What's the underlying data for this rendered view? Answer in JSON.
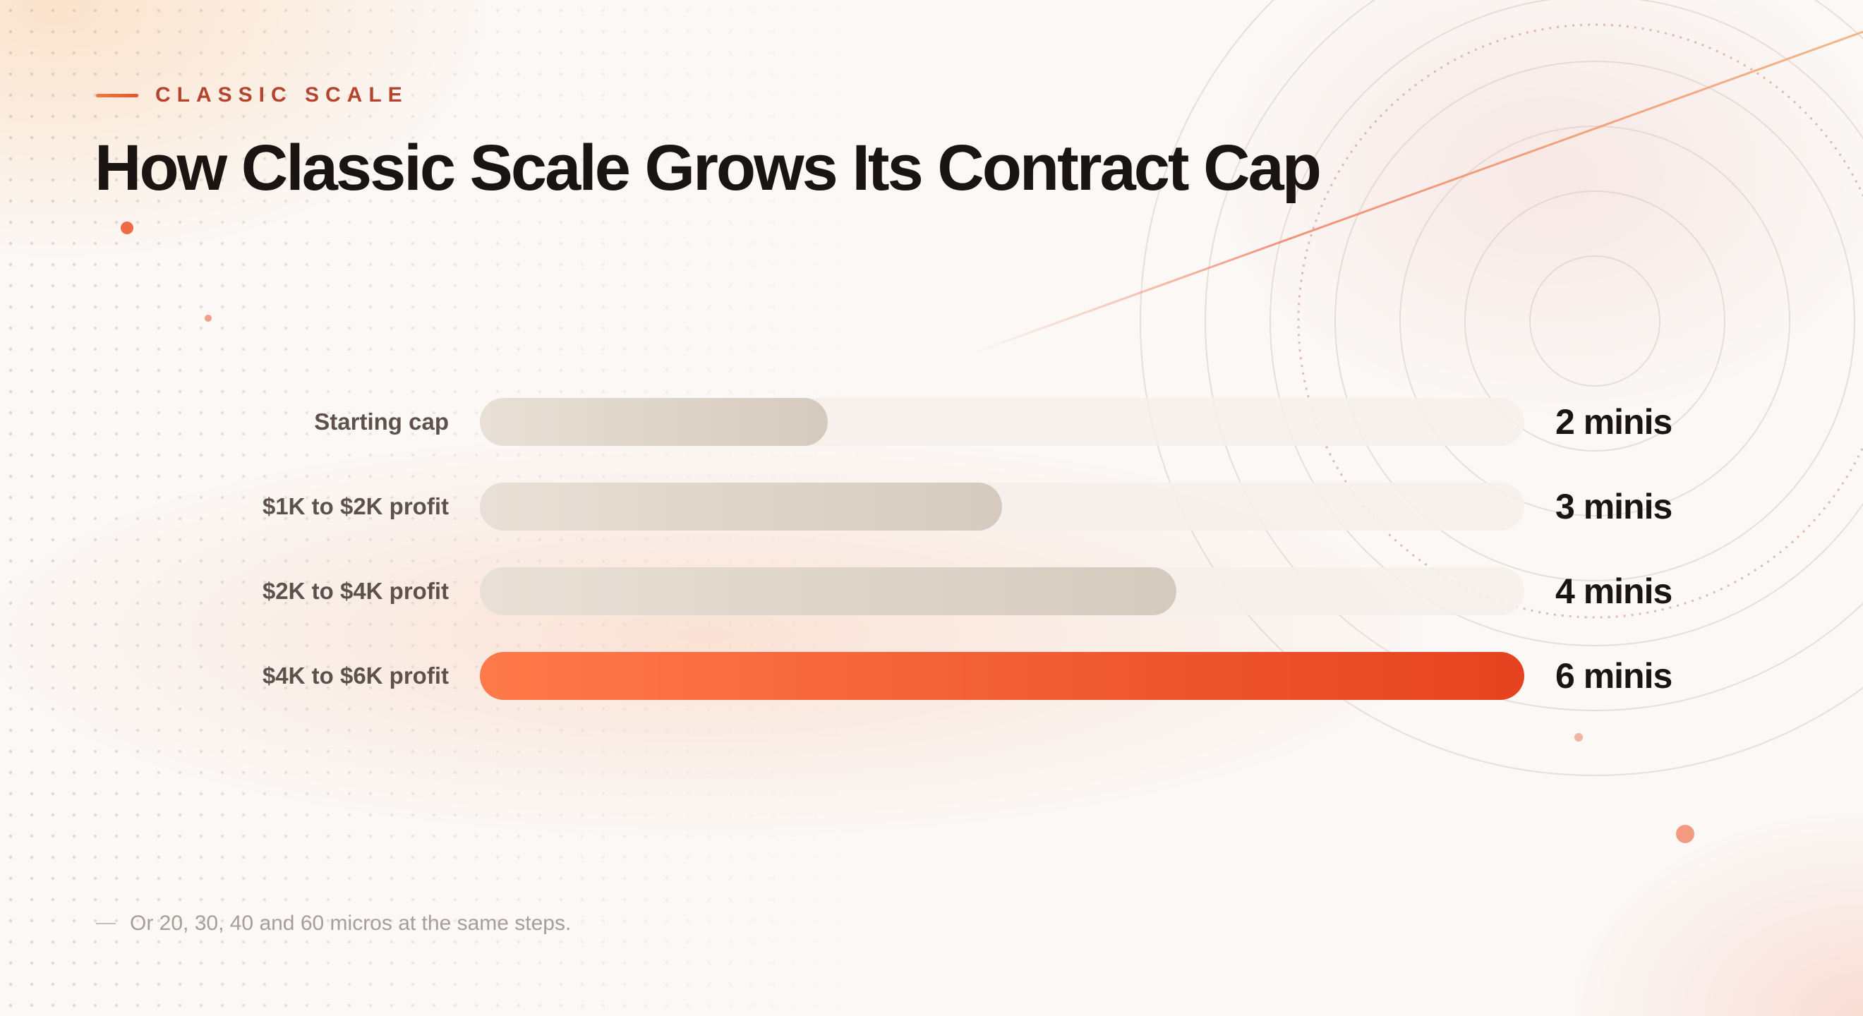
{
  "eyebrow": "CLASSIC SCALE",
  "title": "How Classic Scale Grows Its Contract Cap",
  "footnote": "Or 20, 30, 40 and 60 micros at the same steps.",
  "colors": {
    "accent": "#ef5a2e",
    "neutral_bar": "#dcd2c7",
    "track": "#f5f0ec",
    "eyebrow": "#b5432e"
  },
  "chart_data": {
    "type": "bar",
    "orientation": "horizontal",
    "categories": [
      "Starting cap",
      "$1K to $2K profit",
      "$2K to $4K profit",
      "$4K to $6K profit"
    ],
    "values": [
      2,
      3,
      4,
      6
    ],
    "value_labels": [
      "2 minis",
      "3 minis",
      "4 minis",
      "6 minis"
    ],
    "unit": "minis",
    "xlim": [
      0,
      6
    ],
    "highlight_index": 3,
    "grid": false,
    "legend": "none"
  }
}
